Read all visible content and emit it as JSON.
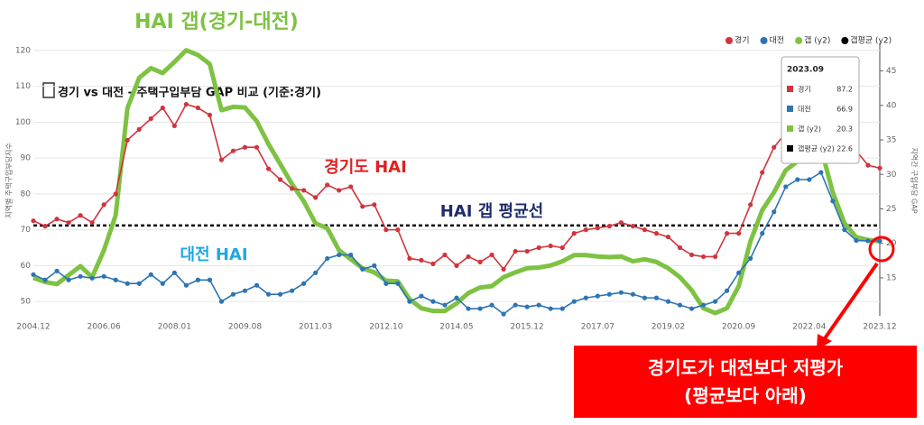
{
  "chart_data": {
    "type": "line",
    "title": "경기 vs 대전 - 주택구입부담 GAP 비교 (기준:경기)",
    "y_label": "지역별 주택구입부담지수",
    "y2_label": "지역간 구입부담 GAP",
    "categories": [
      "2004.12",
      null,
      null,
      null,
      null,
      null,
      "2006.06",
      null,
      null,
      null,
      null,
      null,
      "2008.01",
      null,
      null,
      null,
      null,
      null,
      "2009.08",
      null,
      null,
      null,
      null,
      null,
      "2011.03",
      null,
      null,
      null,
      null,
      null,
      "2012.10",
      null,
      null,
      null,
      null,
      null,
      "2014.05",
      null,
      null,
      null,
      null,
      null,
      "2015.12",
      null,
      null,
      null,
      null,
      null,
      "2017.07",
      null,
      null,
      null,
      null,
      null,
      "2019.02",
      null,
      null,
      null,
      null,
      null,
      "2020.09",
      null,
      null,
      null,
      null,
      null,
      "2022.04",
      null,
      null,
      null,
      null,
      null,
      "2023.12"
    ],
    "series": [
      {
        "name": "경기",
        "color": "#d0343c",
        "values": [
          72.5,
          71,
          73,
          72,
          74,
          72,
          77,
          80,
          95,
          98,
          101,
          104,
          99,
          105,
          104,
          102,
          89.5,
          92,
          93,
          93,
          87,
          84,
          81.5,
          81,
          79,
          82.5,
          81,
          82,
          76.5,
          77,
          70,
          70,
          62,
          61.5,
          60.5,
          63,
          60,
          62.5,
          61,
          63,
          59,
          64,
          64,
          65,
          65.5,
          65,
          69,
          70,
          70.5,
          71,
          72,
          71,
          70,
          69,
          68,
          65,
          63,
          62.5,
          62.5,
          69,
          69,
          77,
          86,
          93,
          97,
          100,
          102,
          110,
          108,
          98,
          92,
          88,
          87.2
        ]
      },
      {
        "name": "대전",
        "color": "#2c74b4",
        "values": [
          57.5,
          56,
          58.5,
          56,
          57,
          56.5,
          57,
          56,
          55,
          55,
          57.5,
          55,
          58,
          54.5,
          56,
          56,
          50,
          52,
          53,
          54.5,
          52,
          52,
          53,
          55,
          58,
          62,
          63,
          63,
          59,
          60,
          55,
          55,
          50,
          51.5,
          50,
          49,
          51,
          48,
          48,
          49,
          46.5,
          49,
          48.5,
          49,
          48,
          48,
          50,
          51,
          51.5,
          52,
          52.5,
          52,
          51,
          51,
          50,
          49,
          48,
          49,
          50,
          53,
          58,
          62,
          69,
          75,
          82,
          84,
          84,
          86,
          78,
          70,
          67,
          66.9,
          66.9
        ]
      },
      {
        "name": "갭 (y2)",
        "color": "#7dc242",
        "axis": "y2",
        "values": [
          15,
          14.4,
          14.1,
          15.4,
          16.7,
          15.1,
          19,
          24.1,
          39.6,
          44,
          45.4,
          44.7,
          46.3,
          48,
          47.3,
          46,
          39.3,
          39.8,
          39.7,
          37.7,
          34.4,
          31.5,
          28.6,
          26.1,
          22.9,
          22.2,
          19,
          17.7,
          16.4,
          15.8,
          14.6,
          14.5,
          11.9,
          10.6,
          10.2,
          10.2,
          11.3,
          12.8,
          13.6,
          13.8,
          15.1,
          15.8,
          16.4,
          16.5,
          16.8,
          17.4,
          18.3,
          18.3,
          18.1,
          18,
          18.1,
          17.4,
          17.7,
          17.3,
          16.4,
          15.1,
          13.2,
          10.6,
          9.9,
          10.6,
          13.8,
          20.3,
          24.8,
          27.4,
          30.6,
          31.9,
          32.1,
          33.8,
          27.4,
          22.9,
          20.9,
          20.5,
          20.3
        ]
      }
    ],
    "reference_line": {
      "name": "갭평균 (y2)",
      "value": 22.6,
      "axis": "y2",
      "color": "#000000"
    },
    "tooltip_title": "2023.09",
    "ylim": [
      46,
      122
    ],
    "yticks": [
      50,
      60,
      70,
      80,
      90,
      100,
      110,
      120
    ],
    "y2lim": [
      9.5,
      49
    ],
    "y2ticks": [
      15,
      20,
      25,
      30,
      35,
      40,
      45
    ],
    "grid": true,
    "legend": "top-right",
    "annotations": [
      "HAI 갭(경기-대전)",
      "경기도 HAI",
      "HAI 갭 평균선",
      "대전 HAI",
      "경기도가 대전보다 저평가",
      "(평균보다 아래)"
    ]
  }
}
